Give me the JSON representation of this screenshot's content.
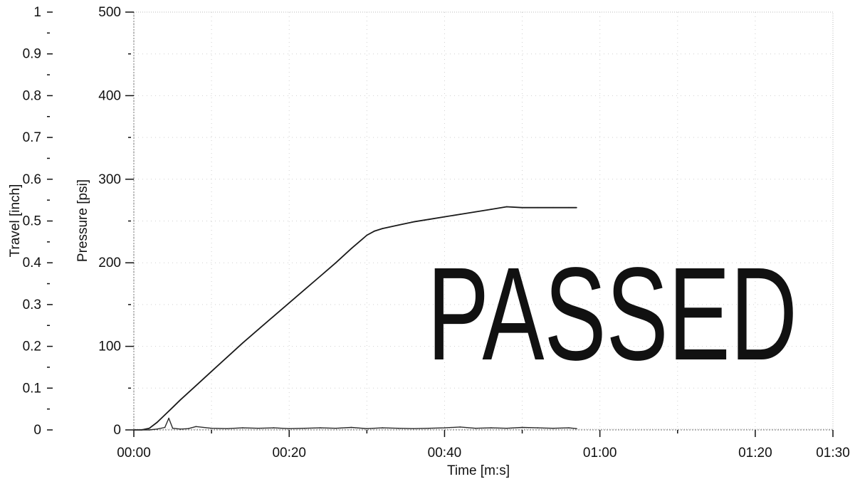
{
  "chart_data": {
    "type": "line",
    "title": "",
    "xlabel": "Time [m:s]",
    "ylabel_pressure": "Pressure [psi]",
    "ylabel_travel": "Travel [inch]",
    "x_unit": "seconds",
    "xlim": [
      0,
      90
    ],
    "ylim_pressure": [
      0,
      500
    ],
    "ylim_travel": [
      0,
      1
    ],
    "x_ticks": [
      {
        "value": 0,
        "label": "00:00"
      },
      {
        "value": 20,
        "label": "00:20"
      },
      {
        "value": 40,
        "label": "00:40"
      },
      {
        "value": 60,
        "label": "01:00"
      },
      {
        "value": 80,
        "label": "01:20"
      },
      {
        "value": 90,
        "label": "01:30"
      }
    ],
    "pressure_ticks": [
      {
        "value": 0,
        "label": "0"
      },
      {
        "value": 100,
        "label": "100"
      },
      {
        "value": 200,
        "label": "200"
      },
      {
        "value": 300,
        "label": "300"
      },
      {
        "value": 400,
        "label": "400"
      },
      {
        "value": 500,
        "label": "500"
      }
    ],
    "travel_ticks": [
      {
        "value": 0,
        "label": "0"
      },
      {
        "value": 0.1,
        "label": "0.1"
      },
      {
        "value": 0.2,
        "label": "0.2"
      },
      {
        "value": 0.3,
        "label": "0.3"
      },
      {
        "value": 0.4,
        "label": "0.4"
      },
      {
        "value": 0.5,
        "label": "0.5"
      },
      {
        "value": 0.6,
        "label": "0.6"
      },
      {
        "value": 0.7,
        "label": "0.7"
      },
      {
        "value": 0.8,
        "label": "0.8"
      },
      {
        "value": 0.9,
        "label": "0.9"
      },
      {
        "value": 1,
        "label": "1"
      }
    ],
    "grid": true,
    "series": [
      {
        "axis": "pressure",
        "color": "#1a1a1a",
        "x": [
          0,
          1,
          2,
          3,
          4,
          5,
          6,
          8,
          10,
          12,
          14,
          16,
          18,
          20,
          22,
          24,
          26,
          28,
          30,
          31,
          32,
          34,
          36,
          38,
          40,
          42,
          44,
          46,
          48,
          50,
          52,
          54,
          56,
          57
        ],
        "y": [
          0,
          0,
          2,
          9,
          18,
          27,
          36,
          53,
          70,
          87,
          104,
          120,
          136,
          152,
          168,
          184,
          200,
          217,
          233,
          238,
          241,
          245,
          249,
          252,
          255,
          258,
          261,
          264,
          267,
          266,
          266,
          266,
          266,
          266
        ]
      },
      {
        "axis": "travel",
        "color": "#2a2a2a",
        "x": [
          0,
          2,
          3,
          4,
          4.5,
          5,
          6,
          7,
          8,
          10,
          12,
          14,
          16,
          18,
          20,
          22,
          24,
          26,
          28,
          30,
          32,
          34,
          36,
          38,
          40,
          42,
          44,
          46,
          48,
          50,
          52,
          54,
          56,
          57
        ],
        "y": [
          0,
          0,
          0.002,
          0.006,
          0.028,
          0.004,
          0.002,
          0.003,
          0.008,
          0.004,
          0.003,
          0.005,
          0.004,
          0.005,
          0.003,
          0.004,
          0.005,
          0.004,
          0.006,
          0.003,
          0.005,
          0.004,
          0.003,
          0.004,
          0.005,
          0.007,
          0.004,
          0.005,
          0.004,
          0.006,
          0.005,
          0.004,
          0.005,
          0.003
        ]
      }
    ]
  },
  "stamp": {
    "text": "PASSED",
    "color": "#8c8c8c"
  }
}
